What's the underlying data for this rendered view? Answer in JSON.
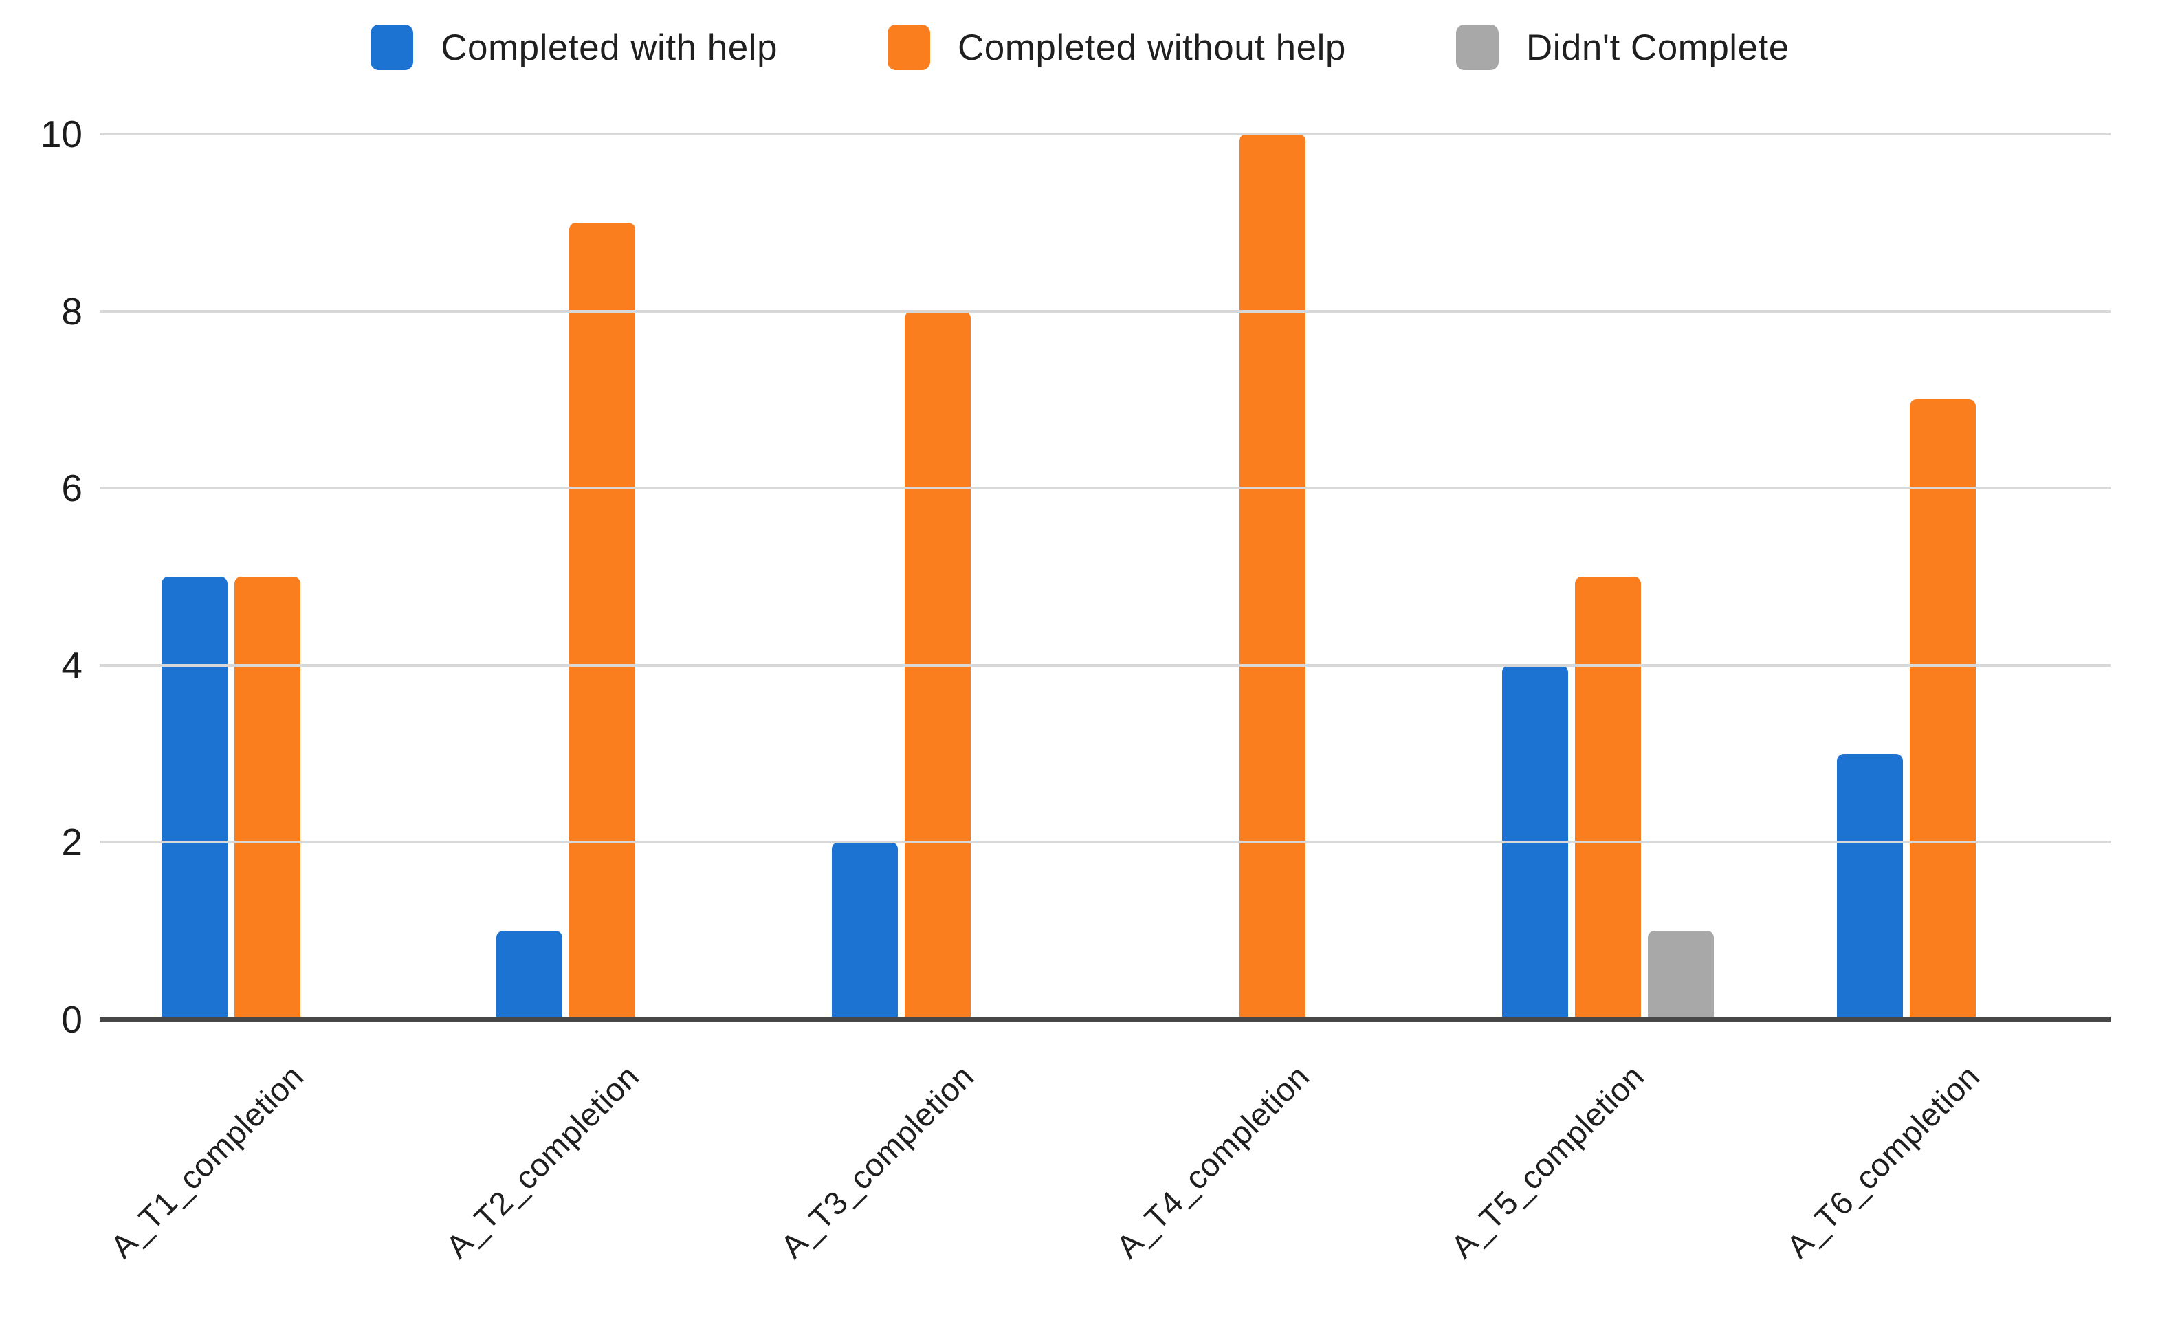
{
  "chart_data": {
    "type": "bar",
    "title": "",
    "xlabel": "",
    "ylabel": "",
    "categories": [
      "A_T1_completion",
      "A_T2_completion",
      "A_T3_completion",
      "A_T4_completion",
      "A_T5_completion",
      "A_T6_completion"
    ],
    "series": [
      {
        "name": "Completed with help",
        "color": "#1c73d2",
        "values": [
          5,
          1,
          2,
          0,
          4,
          3
        ]
      },
      {
        "name": "Completed without help",
        "color": "#fa7d1e",
        "values": [
          5,
          9,
          8,
          10,
          5,
          7
        ]
      },
      {
        "name": "Didn't Complete",
        "color": "#a8a8a8",
        "values": [
          0,
          0,
          0,
          0,
          1,
          0
        ]
      }
    ],
    "ylim": [
      0,
      10
    ],
    "yticks": [
      0,
      2,
      4,
      6,
      8,
      10
    ],
    "grid": true,
    "legend_position": "top",
    "grid_color": "#d8d8d8",
    "axis_color": "#474747"
  }
}
